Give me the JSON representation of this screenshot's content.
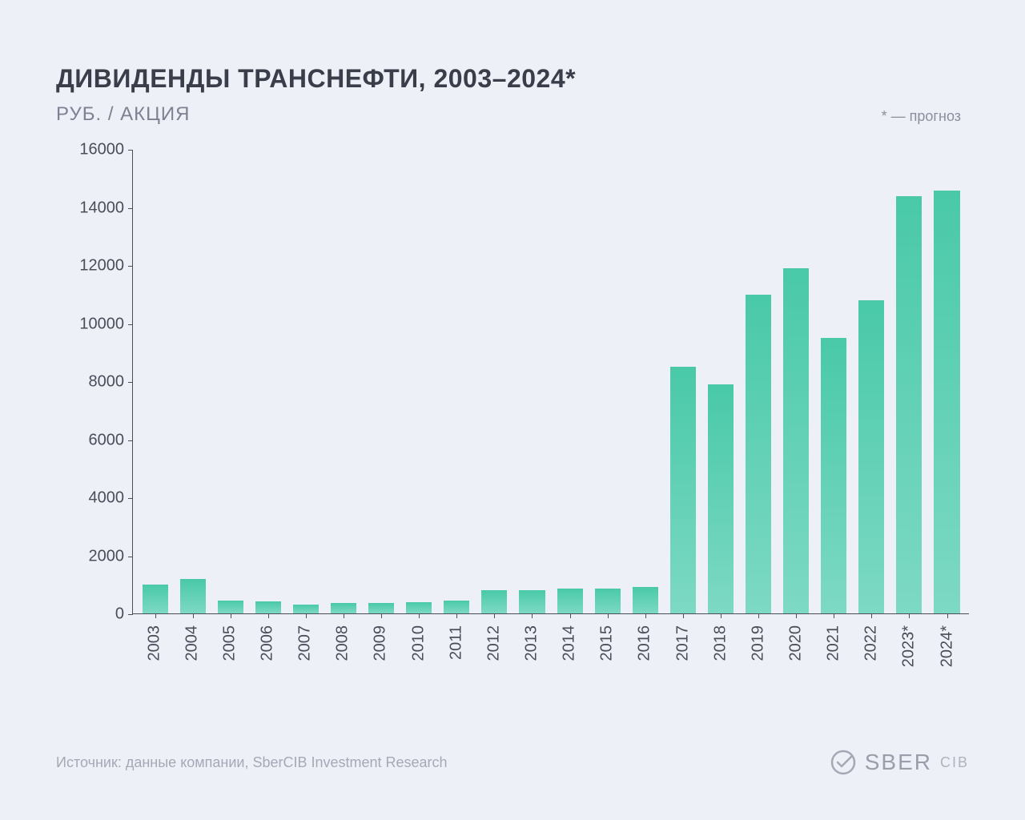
{
  "title": "ДИВИДЕНДЫ ТРАНСНЕФТИ, 2003–2024*",
  "subtitle": "РУБ. / АКЦИЯ",
  "note": "* — прогноз",
  "source": "Источник: данные компании, SberCIB Investment Research",
  "logo": {
    "main": "SBER",
    "sub": "CIB"
  },
  "chart": {
    "type": "bar",
    "background_color": "#eef0f7",
    "title_color": "#3a3d4a",
    "subtitle_color": "#7d8191",
    "axis_color": "#4a4d5a",
    "tick_fontsize": 20,
    "title_fontsize": 32,
    "subtitle_fontsize": 24,
    "bar_gradient_top": "#49c9a8",
    "bar_gradient_bottom": "#7dd9c4",
    "bar_width_ratio": 0.82,
    "ylim": [
      0,
      16000
    ],
    "ytick_step": 2000,
    "yticks": [
      0,
      2000,
      4000,
      6000,
      8000,
      10000,
      12000,
      14000,
      16000
    ],
    "categories": [
      "2003",
      "2004",
      "2005",
      "2006",
      "2007",
      "2008",
      "2009",
      "2010",
      "2011",
      "2012",
      "2013",
      "2014",
      "2015",
      "2016",
      "2017",
      "2018",
      "2019",
      "2020",
      "2021",
      "2022",
      "2023*",
      "2024*"
    ],
    "values": [
      1000,
      1200,
      450,
      420,
      300,
      350,
      350,
      400,
      450,
      800,
      800,
      850,
      850,
      900,
      8500,
      7900,
      11000,
      11900,
      9500,
      10800,
      14400,
      14600
    ]
  }
}
